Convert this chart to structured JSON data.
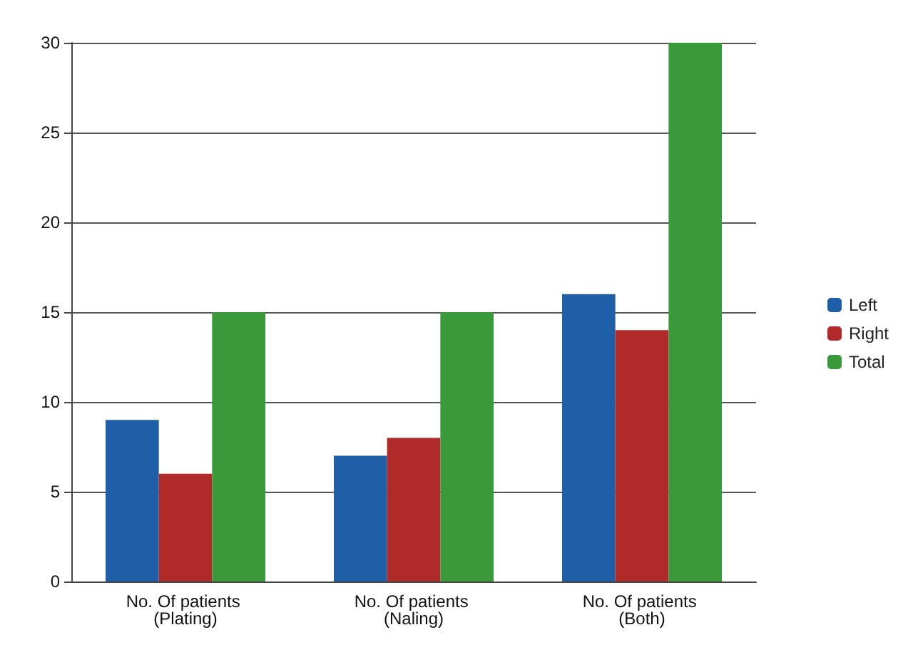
{
  "chart_data": {
    "type": "bar",
    "categories": [
      "No. Of patients (Plating)",
      "No. Of patients (Naling)",
      "No. Of patients (Both)"
    ],
    "series": [
      {
        "name": "Left",
        "color": "#1f5fa8",
        "values": [
          9,
          7,
          16
        ]
      },
      {
        "name": "Right",
        "color": "#b02a2a",
        "values": [
          6,
          8,
          14
        ]
      },
      {
        "name": "Total",
        "color": "#3a9a3a",
        "values": [
          15,
          15,
          30
        ]
      }
    ],
    "ylim": [
      0,
      30
    ],
    "yticks": [
      0,
      5,
      10,
      15,
      20,
      25,
      30
    ],
    "grid": "y",
    "legend": "right"
  }
}
